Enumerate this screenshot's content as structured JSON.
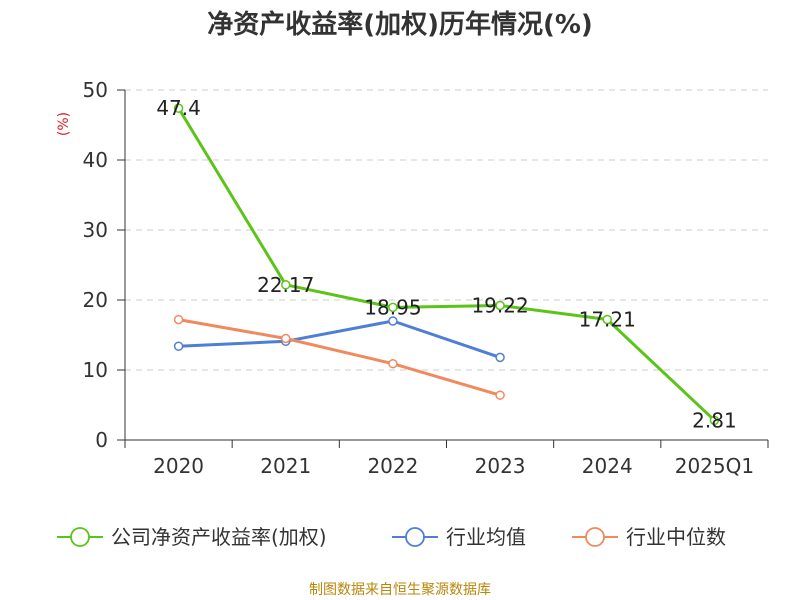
{
  "chart_data": {
    "type": "line",
    "title": "净资产收益率(加权)历年情况(%)",
    "ylabel": "(%)",
    "categories": [
      "2020",
      "2021",
      "2022",
      "2023",
      "2024",
      "2025Q1"
    ],
    "ylim": [
      0,
      50
    ],
    "yticks": [
      "0",
      "10",
      "20",
      "30",
      "40",
      "50"
    ],
    "grid": true,
    "legend_position": "bottom",
    "series": [
      {
        "name": "公司净资产收益率(加权)",
        "color": "#5ac418",
        "values": [
          47.4,
          22.17,
          18.95,
          19.22,
          17.21,
          2.81
        ],
        "labels": [
          "47.4",
          "22.17",
          "18.95",
          "19.22",
          "17.21",
          "2.81"
        ]
      },
      {
        "name": "行业均值",
        "color": "#4f7ed6",
        "values": [
          13.4,
          14.1,
          17.0,
          11.8,
          null,
          null
        ]
      },
      {
        "name": "行业中位数",
        "color": "#f08a5d",
        "values": [
          17.2,
          14.5,
          10.9,
          6.4,
          null,
          null
        ]
      }
    ]
  },
  "ylabel_color": "#e02020",
  "source": "制图数据来自恒生聚源数据库",
  "source_color": "#b8860b"
}
